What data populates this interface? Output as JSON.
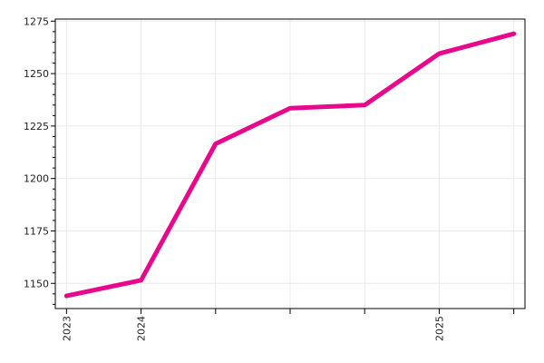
{
  "chart_data": {
    "type": "line",
    "title": "",
    "xlabel": "",
    "ylabel": "",
    "x_ticks": [
      {
        "value": 0,
        "label": "2023"
      },
      {
        "value": 1,
        "label": "2024"
      },
      {
        "value": 2,
        "label": ""
      },
      {
        "value": 3,
        "label": ""
      },
      {
        "value": 4,
        "label": ""
      },
      {
        "value": 5,
        "label": "2025"
      },
      {
        "value": 6,
        "label": ""
      }
    ],
    "xlim": [
      -0.15,
      6.15
    ],
    "ylim": [
      1138,
      1276
    ],
    "y_ticks": [
      1150,
      1175,
      1200,
      1225,
      1250,
      1275
    ],
    "grid": true,
    "series": [
      {
        "color": "#e8088c",
        "x": [
          0,
          1,
          2,
          3,
          4,
          5,
          6
        ],
        "y": [
          1144,
          1151.5,
          1216.5,
          1233.5,
          1235,
          1259.5,
          1269
        ]
      }
    ]
  }
}
